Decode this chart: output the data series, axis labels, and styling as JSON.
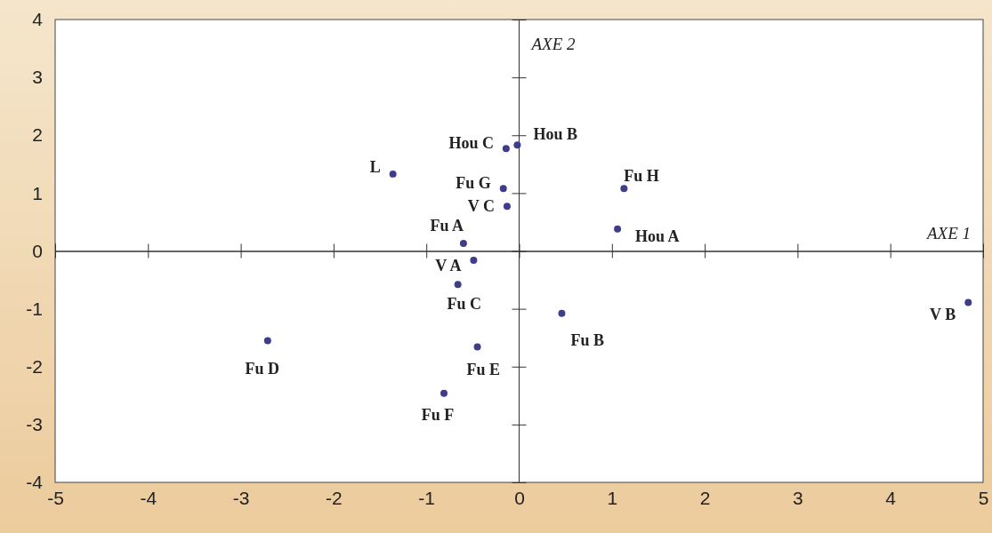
{
  "chart_data": {
    "type": "scatter",
    "xlabel": "AXE 1",
    "ylabel": "AXE 2",
    "marker": "circle",
    "ref_lines": [
      {
        "axis": "x",
        "value": 0
      }
    ],
    "xlim": [
      -5,
      5
    ],
    "xticks": [
      -5,
      -4,
      -3,
      -2,
      -1,
      0,
      1,
      2,
      3,
      4,
      5
    ],
    "ylim": [
      -4,
      4
    ],
    "yticks": [
      -4,
      -3,
      -2,
      -1,
      0,
      1,
      2,
      3,
      4
    ],
    "series": [
      {
        "color": "#3d3d8a",
        "x": [
          -1.36,
          -0.14,
          -0.02,
          -0.17,
          -0.13,
          1.13,
          1.06,
          -0.6,
          -0.49,
          -0.66,
          0.46,
          4.84,
          -2.71,
          -0.45,
          -0.81
        ],
        "values": [
          1.33,
          1.77,
          1.83,
          1.08,
          0.77,
          1.08,
          0.38,
          0.13,
          -0.16,
          -0.58,
          -1.08,
          -0.89,
          -1.55,
          -1.66,
          -2.46
        ]
      }
    ],
    "annotations": [
      {
        "text": "L",
        "x": -1.36,
        "y": 1.33
      },
      {
        "text": "Hou C",
        "x": -0.14,
        "y": 1.77
      },
      {
        "text": "Hou B",
        "x": -0.02,
        "y": 1.83
      },
      {
        "text": "Fu G",
        "x": -0.17,
        "y": 1.08
      },
      {
        "text": "V C",
        "x": -0.13,
        "y": 0.77
      },
      {
        "text": "Fu H",
        "x": 1.13,
        "y": 1.08
      },
      {
        "text": "Hou A",
        "x": 1.06,
        "y": 0.38
      },
      {
        "text": "Fu A",
        "x": -0.6,
        "y": 0.13
      },
      {
        "text": "V A",
        "x": -0.49,
        "y": -0.16
      },
      {
        "text": "Fu C",
        "x": -0.66,
        "y": -0.58
      },
      {
        "text": "Fu B",
        "x": 0.46,
        "y": -1.08
      },
      {
        "text": "V B",
        "x": 4.84,
        "y": -0.89
      },
      {
        "text": "Fu D",
        "x": -2.71,
        "y": -1.55
      },
      {
        "text": "Fu E",
        "x": -0.45,
        "y": -1.66
      },
      {
        "text": "Fu F",
        "x": -0.81,
        "y": -2.46
      }
    ]
  }
}
